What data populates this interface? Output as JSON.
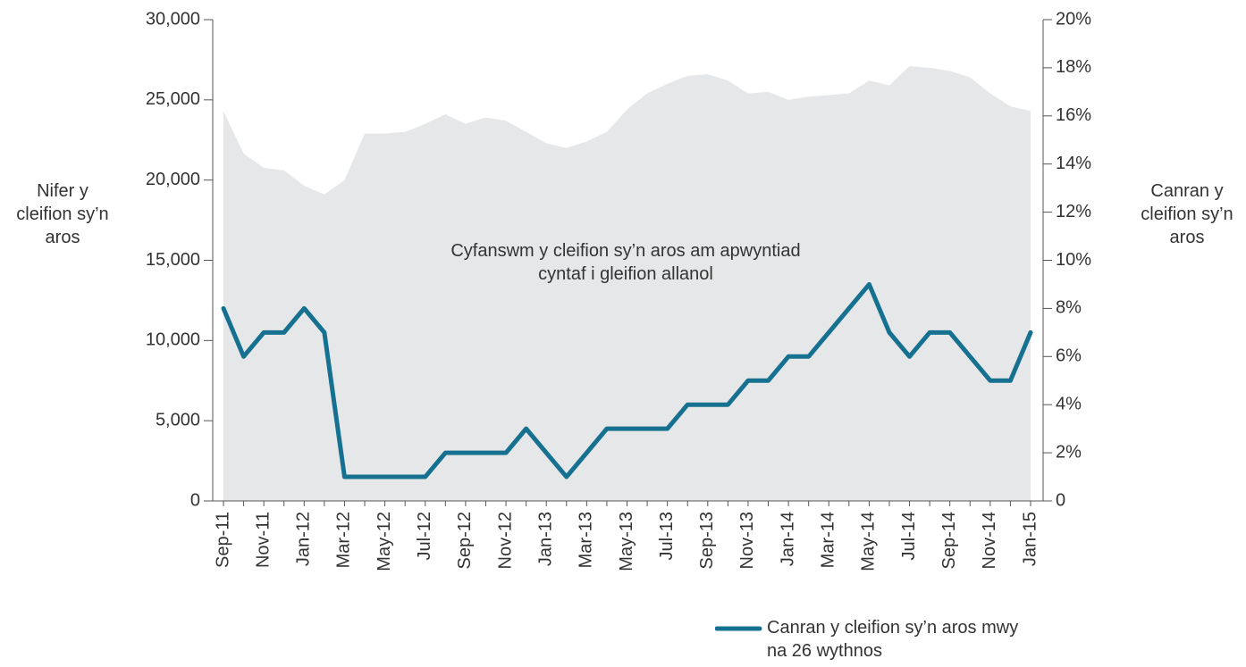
{
  "chart_data": {
    "type": "line",
    "categories": [
      "Sep-11",
      null,
      "Nov-11",
      null,
      "Jan-12",
      null,
      "Mar-12",
      null,
      "May-12",
      null,
      "Jul-12",
      null,
      "Sep-12",
      null,
      "Nov-12",
      null,
      "Jan-13",
      null,
      "Mar-13",
      null,
      "May-13",
      null,
      "Jul-13",
      null,
      "Sep-13",
      null,
      "Nov-13",
      null,
      "Jan-14",
      null,
      "Mar-14",
      null,
      "May-14",
      null,
      "Jul-14",
      null,
      "Sep-14",
      null,
      "Nov-14",
      null,
      "Jan-15"
    ],
    "series": [
      {
        "name": "Cyfanswm y cleifion sy’n aros am apwyntiad cyntaf i gleifion allanol",
        "type": "area",
        "color": "#e6e7e8",
        "values": [
          24300,
          21650,
          20760,
          20600,
          19650,
          19100,
          20000,
          22900,
          22900,
          23000,
          23500,
          24100,
          23500,
          23900,
          23700,
          23000,
          22300,
          22000,
          22400,
          23000,
          24400,
          25400,
          26000,
          26500,
          26600,
          26200,
          25400,
          25500,
          25000,
          25200,
          25300,
          25400,
          26200,
          25900,
          27100,
          27000,
          26800,
          26400,
          25400,
          24600,
          24300
        ]
      },
      {
        "name": "Canran y cleifion sy’n aros mwy na 26 wythnos",
        "type": "line",
        "axis": "y2",
        "color": "#16708f",
        "values": [
          8,
          6,
          7,
          7,
          8,
          7,
          1,
          1,
          1,
          1,
          1,
          2,
          2,
          2,
          2,
          3,
          2,
          1,
          2,
          3,
          3,
          3,
          3,
          4,
          4,
          4,
          5,
          5,
          6,
          6,
          7,
          8,
          9,
          7,
          6,
          7,
          7,
          6,
          5,
          5,
          7
        ]
      }
    ],
    "ylabel": "Nifer y cleifion sy’n aros",
    "y2label": "Canran y cleifion sy’n aros",
    "ylim": [
      0,
      30000
    ],
    "yticks": [
      0,
      {
        "value": 5000,
        "label": "5,000"
      },
      {
        "value": 10000,
        "label": "10,000"
      },
      {
        "value": 15000,
        "label": "15,000"
      },
      {
        "value": 20000,
        "label": "20,000"
      },
      {
        "value": 25000,
        "label": "25,000"
      },
      {
        "value": 30000,
        "label": "30,000"
      }
    ],
    "y2lim": [
      0,
      20
    ],
    "y2ticks": [
      0,
      {
        "value": 2,
        "label": "2%"
      },
      {
        "value": 4,
        "label": "4%"
      },
      {
        "value": 6,
        "label": "6%"
      },
      {
        "value": 8,
        "label": "8%"
      },
      {
        "value": 10,
        "label": "10%"
      },
      {
        "value": 12,
        "label": "12%"
      },
      {
        "value": 14,
        "label": "14%"
      },
      {
        "value": 16,
        "label": "16%"
      },
      {
        "value": 18,
        "label": "18%"
      },
      {
        "value": 20,
        "label": "20%"
      }
    ],
    "legend": "bottom-right"
  }
}
